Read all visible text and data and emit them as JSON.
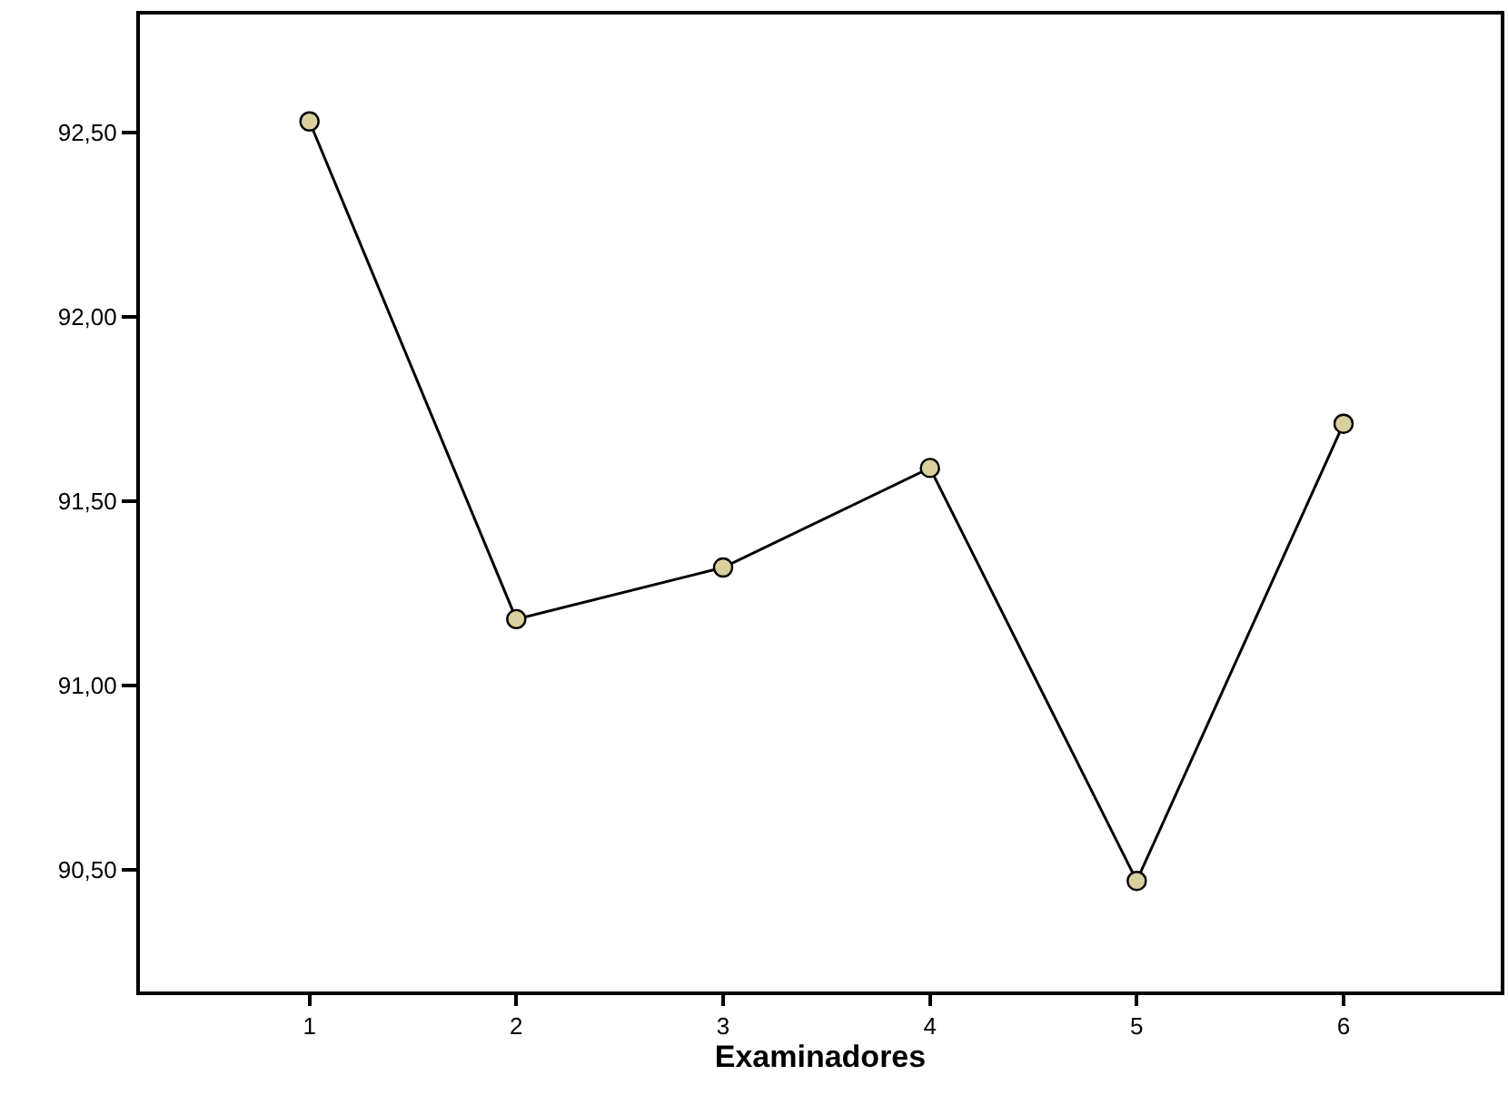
{
  "chart_data": {
    "type": "line",
    "xlabel": "Examinadores",
    "x": [
      1,
      2,
      3,
      4,
      5,
      6
    ],
    "series": [
      {
        "color": "#000000",
        "values": [
          92.53,
          91.18,
          91.32,
          91.59,
          90.47,
          91.71
        ]
      }
    ],
    "xlim": [
      0.18,
      6.76
    ],
    "xticks": [
      1,
      2,
      3,
      4,
      5,
      6
    ],
    "ylim": [
      90.17,
      92.82
    ],
    "yticks": [
      {
        "value": 90.5,
        "label": "90,50"
      },
      {
        "value": 91.0,
        "label": "91,00"
      },
      {
        "value": 91.5,
        "label": "91,50"
      },
      {
        "value": 92.0,
        "label": "92,00"
      },
      {
        "value": 92.5,
        "label": "92,50"
      }
    ],
    "marker": "circle",
    "line_style": "solid"
  }
}
